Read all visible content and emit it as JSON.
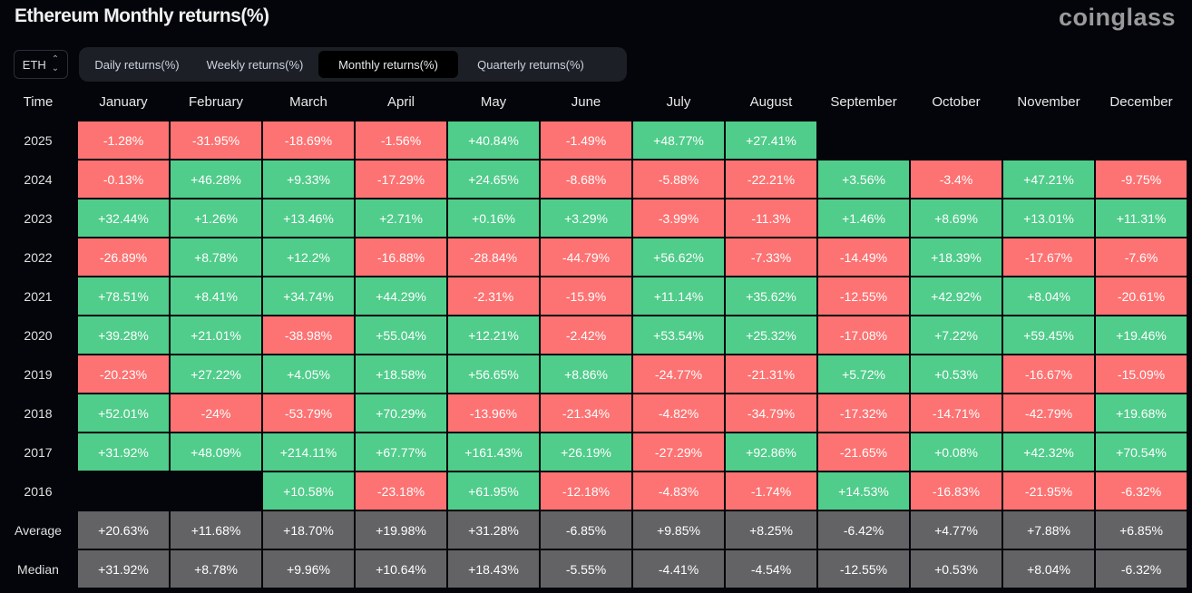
{
  "header": {
    "title": "Ethereum Monthly returns(%)",
    "logo": "coinglass"
  },
  "asset_selector": {
    "value": "ETH",
    "icon": "chevron-up-down-icon"
  },
  "tabs": [
    {
      "label": "Daily returns(%)",
      "active": false
    },
    {
      "label": "Weekly returns(%)",
      "active": false
    },
    {
      "label": "Monthly returns(%)",
      "active": true
    },
    {
      "label": "Quarterly returns(%)",
      "active": false
    }
  ],
  "colors": {
    "positive": "#50cc8b",
    "negative": "#fd7272",
    "stat": "#636366",
    "background": "#03050a"
  },
  "table": {
    "time_header": "Time",
    "months": [
      "January",
      "February",
      "March",
      "April",
      "May",
      "June",
      "July",
      "August",
      "September",
      "October",
      "November",
      "December"
    ],
    "rows": [
      {
        "label": "2025",
        "values": [
          "-1.28%",
          "-31.95%",
          "-18.69%",
          "-1.56%",
          "+40.84%",
          "-1.49%",
          "+48.77%",
          "+27.41%",
          null,
          null,
          null,
          null
        ]
      },
      {
        "label": "2024",
        "values": [
          "-0.13%",
          "+46.28%",
          "+9.33%",
          "-17.29%",
          "+24.65%",
          "-8.68%",
          "-5.88%",
          "-22.21%",
          "+3.56%",
          "-3.4%",
          "+47.21%",
          "-9.75%"
        ]
      },
      {
        "label": "2023",
        "values": [
          "+32.44%",
          "+1.26%",
          "+13.46%",
          "+2.71%",
          "+0.16%",
          "+3.29%",
          "-3.99%",
          "-11.3%",
          "+1.46%",
          "+8.69%",
          "+13.01%",
          "+11.31%"
        ]
      },
      {
        "label": "2022",
        "values": [
          "-26.89%",
          "+8.78%",
          "+12.2%",
          "-16.88%",
          "-28.84%",
          "-44.79%",
          "+56.62%",
          "-7.33%",
          "-14.49%",
          "+18.39%",
          "-17.67%",
          "-7.6%"
        ]
      },
      {
        "label": "2021",
        "values": [
          "+78.51%",
          "+8.41%",
          "+34.74%",
          "+44.29%",
          "-2.31%",
          "-15.9%",
          "+11.14%",
          "+35.62%",
          "-12.55%",
          "+42.92%",
          "+8.04%",
          "-20.61%"
        ]
      },
      {
        "label": "2020",
        "values": [
          "+39.28%",
          "+21.01%",
          "-38.98%",
          "+55.04%",
          "+12.21%",
          "-2.42%",
          "+53.54%",
          "+25.32%",
          "-17.08%",
          "+7.22%",
          "+59.45%",
          "+19.46%"
        ]
      },
      {
        "label": "2019",
        "values": [
          "-20.23%",
          "+27.22%",
          "+4.05%",
          "+18.58%",
          "+56.65%",
          "+8.86%",
          "-24.77%",
          "-21.31%",
          "+5.72%",
          "+0.53%",
          "-16.67%",
          "-15.09%"
        ]
      },
      {
        "label": "2018",
        "values": [
          "+52.01%",
          "-24%",
          "-53.79%",
          "+70.29%",
          "-13.96%",
          "-21.34%",
          "-4.82%",
          "-34.79%",
          "-17.32%",
          "-14.71%",
          "-42.79%",
          "+19.68%"
        ]
      },
      {
        "label": "2017",
        "values": [
          "+31.92%",
          "+48.09%",
          "+214.11%",
          "+67.77%",
          "+161.43%",
          "+26.19%",
          "-27.29%",
          "+92.86%",
          "-21.65%",
          "+0.08%",
          "+42.32%",
          "+70.54%"
        ]
      },
      {
        "label": "2016",
        "values": [
          null,
          null,
          "+10.58%",
          "-23.18%",
          "+61.95%",
          "-12.18%",
          "-4.83%",
          "-1.74%",
          "+14.53%",
          "-16.83%",
          "-21.95%",
          "-6.32%"
        ]
      }
    ],
    "stats": [
      {
        "label": "Average",
        "values": [
          "+20.63%",
          "+11.68%",
          "+18.70%",
          "+19.98%",
          "+31.28%",
          "-6.85%",
          "+9.85%",
          "+8.25%",
          "-6.42%",
          "+4.77%",
          "+7.88%",
          "+6.85%"
        ]
      },
      {
        "label": "Median",
        "values": [
          "+31.92%",
          "+8.78%",
          "+9.96%",
          "+10.64%",
          "+18.43%",
          "-5.55%",
          "-4.41%",
          "-4.54%",
          "-12.55%",
          "+0.53%",
          "+8.04%",
          "-6.32%"
        ]
      }
    ]
  }
}
